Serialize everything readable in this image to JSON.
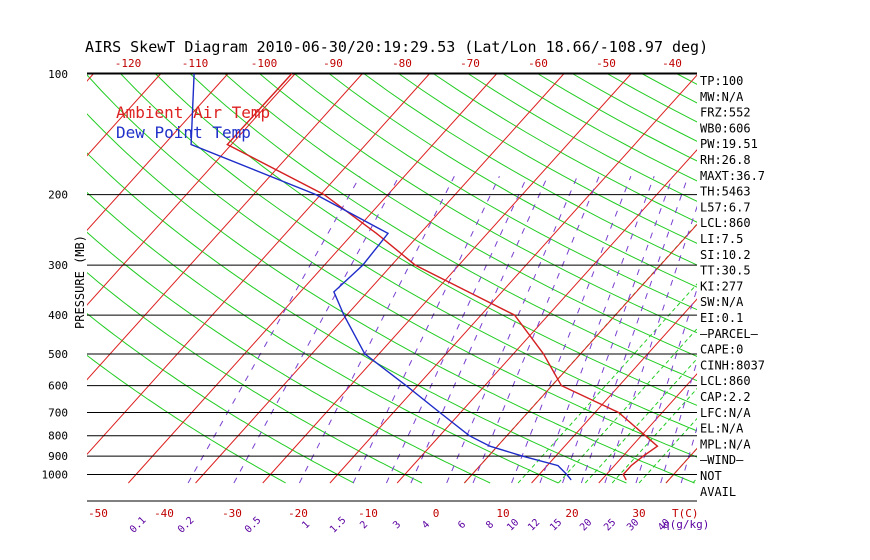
{
  "chart_data": {
    "type": "line",
    "title": "AIRS SkewT Diagram 2010-06-30/20:19:29.53 (Lat/Lon 18.66/-108.97 deg)",
    "ylabel": "PRESSURE (MB)",
    "xlabel_bottom": "T(C)",
    "mixing_label": "q(g/kg)",
    "pressure_ticks": [
      100,
      200,
      300,
      400,
      500,
      600,
      700,
      800,
      900,
      1000
    ],
    "pressure_range": [
      100,
      1050
    ],
    "bottom_temp_ticks": [
      "-50",
      "-40",
      "-30",
      "-20",
      "-10",
      "0",
      "10",
      "20",
      "30"
    ],
    "top_temp_ticks": [
      "-120",
      "-110",
      "-100",
      "-90",
      "-80",
      "-70",
      "-60",
      "-50",
      "-40"
    ],
    "mixing_ratio_ticks": [
      "0.1",
      "0.2",
      "0.5",
      "1",
      "1.5",
      "2",
      "3",
      "4",
      "6",
      "8",
      "10",
      "12",
      "15",
      "20",
      "25",
      "30",
      "40"
    ],
    "legend": [
      {
        "label": "Ambient Air Temp",
        "color": "#dd2020"
      },
      {
        "label": "Dew Point Temp",
        "color": "#2030c8"
      }
    ],
    "series": [
      {
        "name": "Ambient Air Temp",
        "color": "#d42020",
        "points": [
          {
            "p": 100,
            "t": -80.5
          },
          {
            "p": 150,
            "t": -80.6
          },
          {
            "p": 200,
            "t": -59.5
          },
          {
            "p": 250,
            "t": -46.5
          },
          {
            "p": 300,
            "t": -36.5
          },
          {
            "p": 350,
            "t": -25.0
          },
          {
            "p": 400,
            "t": -15.0
          },
          {
            "p": 500,
            "t": -5.5
          },
          {
            "p": 600,
            "t": 1.4
          },
          {
            "p": 700,
            "t": 13.5
          },
          {
            "p": 800,
            "t": 20.6
          },
          {
            "p": 850,
            "t": 23.8
          },
          {
            "p": 900,
            "t": 23.0
          },
          {
            "p": 950,
            "t": 22.5
          },
          {
            "p": 1000,
            "t": 22.5
          },
          {
            "p": 1030,
            "t": 23.6
          }
        ]
      },
      {
        "name": "Dew Point Temp",
        "color": "#1e2cc8",
        "points": [
          {
            "p": 100,
            "t": -95.0
          },
          {
            "p": 150,
            "t": -86.0
          },
          {
            "p": 200,
            "t": -60.7
          },
          {
            "p": 250,
            "t": -44.8
          },
          {
            "p": 300,
            "t": -44.3
          },
          {
            "p": 350,
            "t": -45.0
          },
          {
            "p": 400,
            "t": -40.4
          },
          {
            "p": 500,
            "t": -32.1
          },
          {
            "p": 600,
            "t": -21.7
          },
          {
            "p": 700,
            "t": -13.1
          },
          {
            "p": 800,
            "t": -5.6
          },
          {
            "p": 850,
            "t": -1.1
          },
          {
            "p": 900,
            "t": 5.1
          },
          {
            "p": 950,
            "t": 11.6
          },
          {
            "p": 1000,
            "t": 14.1
          },
          {
            "p": 1030,
            "t": 15.4
          }
        ]
      }
    ]
  },
  "stats": [
    "TP:100",
    "MW:N/A",
    "FRZ:552",
    "WB0:606",
    "PW:19.51",
    "RH:26.8",
    "MAXT:36.7",
    "TH:5463",
    "L57:6.7",
    "LCL:860",
    "LI:7.5",
    "SI:10.2",
    "TT:30.5",
    "KI:277",
    "SW:N/A",
    "EI:0.1",
    "—PARCEL—",
    "CAPE:0",
    "CINH:8037",
    "LCL:860",
    "CAP:2.2",
    "LFC:N/A",
    "EL:N/A",
    "MPL:N/A",
    "—WIND—",
    "NOT",
    "AVAIL"
  ]
}
